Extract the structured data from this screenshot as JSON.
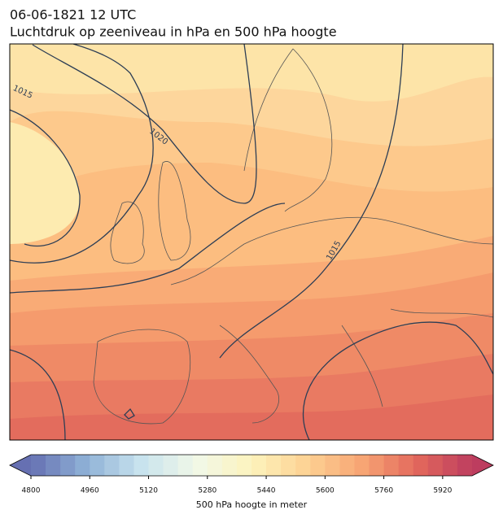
{
  "header": {
    "date": "06-06-1821 12 UTC",
    "title": "Luchtdruk op zeeniveau in hPa en 500 hPa hoogte"
  },
  "isobars": [
    {
      "label": 1015
    },
    {
      "label": 1020
    },
    {
      "label": 1015
    }
  ],
  "colorbar": {
    "label": "500 hPa hoogte in meter",
    "lim": [
      4800,
      6000
    ],
    "ticks": [
      4800,
      4960,
      5120,
      5280,
      5440,
      5600,
      5760,
      5920
    ],
    "colors": [
      "#6670b2",
      "#8fb1d6",
      "#c8e3ee",
      "#f1f8e8",
      "#fdf3bd",
      "#fdd293",
      "#f7a574",
      "#e3685c",
      "#bd3d5f"
    ]
  }
}
